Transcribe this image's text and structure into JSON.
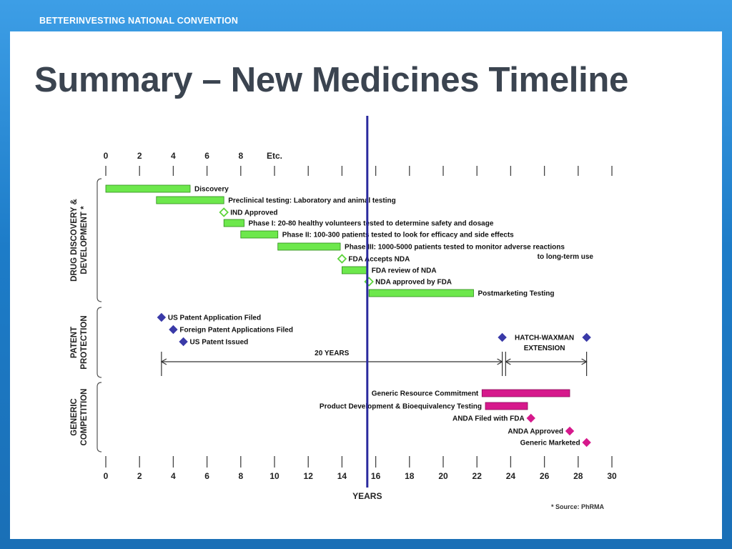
{
  "header": {
    "conference": "BETTERINVESTING NATIONAL CONVENTION",
    "title": "Summary – New Medicines Timeline"
  },
  "colors": {
    "background_blue": "#1f7fc9",
    "title_gray": "#3b4450",
    "bar_green": "#6de84c",
    "milestone_green": "#5cd43a",
    "patent_blue": "#3a3aa8",
    "generic_magenta": "#d6198c",
    "current_year_line": "#2a2a9e"
  },
  "chart_data": {
    "type": "gantt",
    "xlabel": "YEARS",
    "xlim": [
      0,
      30
    ],
    "top_ticks": [
      "0",
      "2",
      "4",
      "6",
      "8",
      "Etc."
    ],
    "bottom_ticks": [
      "0",
      "2",
      "4",
      "6",
      "8",
      "10",
      "12",
      "14",
      "16",
      "18",
      "20",
      "22",
      "24",
      "26",
      "28",
      "30"
    ],
    "current_year_marker": 15.5,
    "groups": [
      {
        "id": "drug",
        "lines": [
          "DRUG DISCOVERY &",
          "DEVELOPMENT *"
        ]
      },
      {
        "id": "patent",
        "lines": [
          "PATENT",
          "PROTECTION"
        ]
      },
      {
        "id": "generic",
        "lines": [
          "GENERIC",
          "COMPETITION"
        ]
      }
    ],
    "items": [
      {
        "group": "drug",
        "kind": "bar",
        "color": "green",
        "label": "Discovery",
        "start": 0,
        "end": 5,
        "label_side": "right"
      },
      {
        "group": "drug",
        "kind": "bar",
        "color": "green",
        "label": "Preclinical testing:  Laboratory and animal testing",
        "start": 3,
        "end": 7,
        "label_side": "right"
      },
      {
        "group": "drug",
        "kind": "milestone",
        "color": "green",
        "label": "IND Approved",
        "at": 7,
        "label_side": "right"
      },
      {
        "group": "drug",
        "kind": "bar",
        "color": "green",
        "label": "Phase I:  20-80 healthy volunteers tested to determine safety and dosage",
        "start": 7,
        "end": 8.2,
        "label_side": "right"
      },
      {
        "group": "drug",
        "kind": "bar",
        "color": "green",
        "label": "Phase II:  100-300 patients tested to look for efficacy and side effects",
        "start": 8,
        "end": 10.2,
        "label_side": "right"
      },
      {
        "group": "drug",
        "kind": "bar",
        "color": "green",
        "label": "Phase III:  1000-5000 patients tested to monitor adverse reactions",
        "label2": "to long-term use",
        "start": 10.2,
        "end": 13.9,
        "label_side": "right"
      },
      {
        "group": "drug",
        "kind": "milestone",
        "color": "green",
        "label": "FDA Accepts NDA",
        "at": 14,
        "label_side": "right"
      },
      {
        "group": "drug",
        "kind": "bar",
        "color": "green",
        "label": "FDA review of NDA",
        "start": 14,
        "end": 15.5,
        "label_side": "right"
      },
      {
        "group": "drug",
        "kind": "milestone",
        "color": "green",
        "label": "NDA approved by FDA",
        "at": 15.6,
        "label_side": "right"
      },
      {
        "group": "drug",
        "kind": "bar",
        "color": "green",
        "label": "Postmarketing Testing",
        "start": 15.6,
        "end": 21.8,
        "label_side": "right"
      },
      {
        "group": "patent",
        "kind": "milestone",
        "color": "blue",
        "label": "US Patent Application Filed",
        "at": 3.3,
        "label_side": "right"
      },
      {
        "group": "patent",
        "kind": "milestone",
        "color": "blue",
        "label": "Foreign Patent Applications Filed",
        "at": 4,
        "label_side": "right"
      },
      {
        "group": "patent",
        "kind": "milestone",
        "color": "blue",
        "label": "US Patent Issued",
        "at": 4.6,
        "label_side": "right"
      },
      {
        "group": "patent",
        "kind": "milestone",
        "color": "blue",
        "label": "HATCH-WAXMAN",
        "label2": "EXTENSION",
        "at": 23.5,
        "at2": 28.5,
        "label_side": "between"
      },
      {
        "group": "patent",
        "kind": "span",
        "label": "20 YEARS",
        "start": 3.3,
        "end": 23.5
      },
      {
        "group": "patent",
        "kind": "span",
        "label": "",
        "start": 23.7,
        "end": 28.5
      },
      {
        "group": "generic",
        "kind": "bar",
        "color": "magenta",
        "label": "Generic Resource Commitment",
        "start": 22.3,
        "end": 27.5,
        "label_side": "left"
      },
      {
        "group": "generic",
        "kind": "bar",
        "color": "magenta",
        "label": "Product Development & Bioequivalency Testing",
        "start": 22.5,
        "end": 25,
        "label_side": "left"
      },
      {
        "group": "generic",
        "kind": "milestone",
        "color": "magenta",
        "label": "ANDA Filed with FDA",
        "at": 25.2,
        "label_side": "left"
      },
      {
        "group": "generic",
        "kind": "milestone",
        "color": "magenta",
        "label": "ANDA Approved",
        "at": 27.5,
        "label_side": "left"
      },
      {
        "group": "generic",
        "kind": "milestone",
        "color": "magenta",
        "label": "Generic Marketed",
        "at": 28.5,
        "label_side": "left"
      }
    ],
    "source_note": "* Source: PhRMA"
  }
}
